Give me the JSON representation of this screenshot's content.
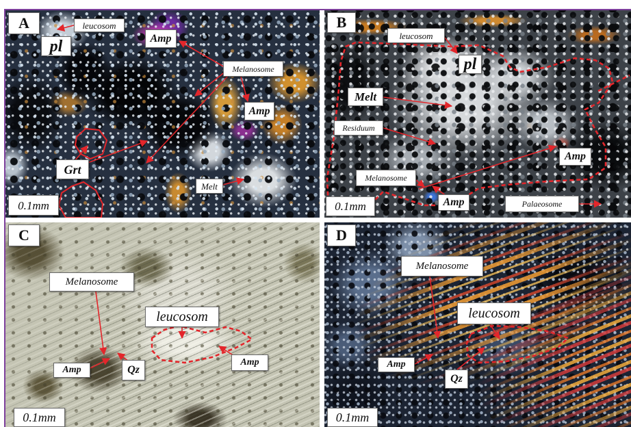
{
  "figure": {
    "panels": {
      "a": {
        "letter": "A",
        "scale": "0.1mm",
        "labels": {
          "leucosom": "leucosom",
          "pl": "pl",
          "amp_top": "Amp",
          "melanosome": "Melanosome",
          "amp_mid": "Amp",
          "grt": "Grt",
          "melt": "Melt"
        }
      },
      "b": {
        "letter": "B",
        "scale": "0.1mm",
        "labels": {
          "leucosom": "leucosom",
          "pl": "pl",
          "melt": "Melt",
          "residuum": "Residuum",
          "melanosome": "Melanosome",
          "amp_right": "Amp",
          "amp_bottom": "Amp",
          "palaeosome": "Palaeosome"
        }
      },
      "c": {
        "letter": "C",
        "scale": "0.1mm",
        "labels": {
          "melanosome": "Melanosome",
          "leucosom": "leucosom",
          "amp_left": "Amp",
          "qz": "Qz",
          "amp_right": "Amp"
        }
      },
      "d": {
        "letter": "D",
        "scale": "0.1mm",
        "labels": {
          "melanosome": "Melanosome",
          "leucosom": "leucosom",
          "amp": "Amp",
          "qz": "Qz"
        }
      }
    }
  },
  "colors": {
    "annotation_red": "#e3262b",
    "frame_purple": "#7d3f9c",
    "label_fill": "#ffffff"
  }
}
